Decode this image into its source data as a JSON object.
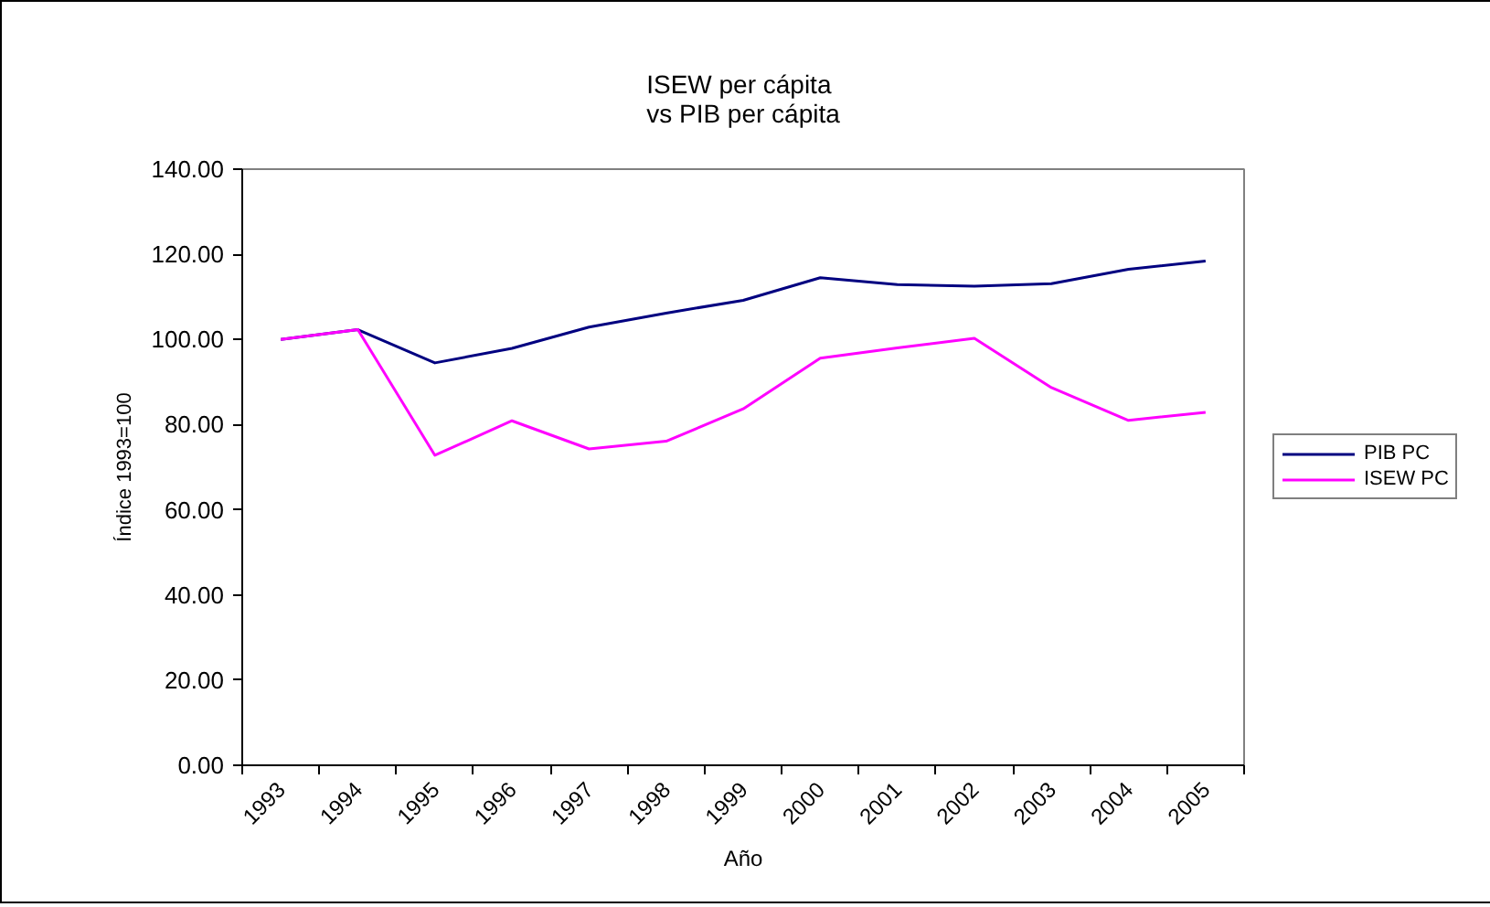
{
  "chart_data": {
    "type": "line",
    "title": "ISEW per cápita\nvs PIB per cápita",
    "xlabel": "Año",
    "ylabel": "Índice 1993=100",
    "categories": [
      "1993",
      "1994",
      "1995",
      "1996",
      "1997",
      "1998",
      "1999",
      "2000",
      "2001",
      "2002",
      "2003",
      "2004",
      "2005"
    ],
    "series": [
      {
        "name": "PIB PC",
        "color": "#000080",
        "values": [
          100.0,
          102.3,
          94.5,
          97.9,
          102.9,
          106.2,
          109.2,
          114.5,
          112.9,
          112.5,
          113.1,
          116.5,
          118.4
        ]
      },
      {
        "name": "ISEW PC",
        "color": "#ff00ff",
        "values": [
          100.0,
          102.3,
          72.8,
          80.9,
          74.3,
          76.1,
          83.7,
          95.6,
          98.0,
          100.3,
          88.7,
          81.0,
          82.9
        ]
      }
    ],
    "ylim": [
      0,
      140
    ],
    "yticks": [
      {
        "value": 0,
        "label": "0.00"
      },
      {
        "value": 20,
        "label": "20.00"
      },
      {
        "value": 40,
        "label": "40.00"
      },
      {
        "value": 60,
        "label": "60.00"
      },
      {
        "value": 80,
        "label": "80.00"
      },
      {
        "value": 100,
        "label": "100.00"
      },
      {
        "value": 120,
        "label": "120.00"
      },
      {
        "value": 140,
        "label": "140.00"
      }
    ],
    "grid": false,
    "legend": "right",
    "line_style": "solid"
  }
}
